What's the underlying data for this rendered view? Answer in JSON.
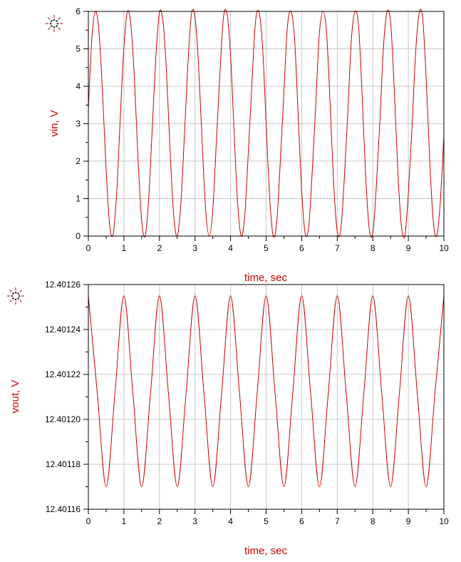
{
  "chart_data": [
    {
      "type": "line",
      "xlabel": "time, sec",
      "ylabel": "vin, V",
      "xlim": [
        0,
        10
      ],
      "ylim": [
        0,
        6
      ],
      "x_ticks": [
        "0",
        "1",
        "2",
        "3",
        "4",
        "5",
        "6",
        "7",
        "8",
        "9",
        "10"
      ],
      "y_ticks": [
        "0",
        "1",
        "2",
        "3",
        "4",
        "5",
        "6"
      ],
      "grid": true,
      "color": "#cc0000",
      "series": [
        {
          "x": [
            0,
            0.1,
            0.2,
            0.3,
            0.4,
            0.5,
            0.6,
            0.7,
            0.8,
            0.9,
            1,
            1.1,
            1.2,
            1.3,
            1.4,
            1.5,
            1.6,
            1.7,
            1.8,
            1.9,
            2,
            2.1,
            2.2,
            2.3,
            2.4,
            2.5,
            2.6,
            2.7,
            2.8,
            2.9,
            3,
            3.1,
            3.2,
            3.3,
            3.4,
            3.5,
            3.6,
            3.7,
            3.8,
            3.9,
            4,
            4.1,
            4.2,
            4.3,
            4.4,
            4.5,
            4.6,
            4.7,
            4.8,
            4.9,
            5,
            5.1,
            5.2,
            5.3,
            5.4,
            5.5,
            5.6,
            5.7,
            5.8,
            5.9,
            6,
            6.1,
            6.2,
            6.3,
            6.4,
            6.5,
            6.6,
            6.7,
            6.8,
            6.9,
            7,
            7.1,
            7.2,
            7.3,
            7.4,
            7.5,
            7.6,
            7.7,
            7.8,
            7.9,
            8,
            8.1,
            8.2,
            8.3,
            8.4,
            8.5,
            8.6,
            8.7,
            8.8,
            8.9,
            9,
            9.1,
            9.2,
            9.3,
            9.4,
            9.5,
            9.6,
            9.7,
            9.8,
            9.9,
            10
          ],
          "y": [
            3.4,
            5.3,
            6,
            5.44,
            3.79,
            1.77,
            0.28,
            0.06,
            1.21,
            3.2,
            5.05,
            6,
            5.6,
            4.1,
            2.01,
            0.4,
            0,
            1.04,
            2.93,
            4.81,
            5.98,
            5.72,
            4.34,
            2.25,
            0.56,
            0,
            0.86,
            2.66,
            4.59,
            5.93,
            5.84,
            4.56,
            2.51,
            0.7,
            0,
            0.7,
            2.51,
            4.33,
            5.84,
            5.93,
            4.82,
            2.77,
            0.87,
            0,
            0.56,
            2.25,
            4.08,
            5.72,
            5.98,
            5.05,
            3.01,
            1.04,
            0,
            0.4,
            2.01,
            3.85,
            5.6,
            6,
            5.27,
            3.25,
            1.21,
            0.06,
            0.28,
            1.77,
            3.6,
            5.44,
            6,
            5.44,
            3.52,
            1.4,
            0.12,
            0.17,
            1.55,
            3.35,
            5.27,
            6,
            5.6,
            3.76,
            1.6,
            0.2,
            0.08,
            1.33,
            3.1,
            5.05,
            5.98,
            5.72,
            4.01,
            1.82,
            0.31,
            0,
            1.13,
            2.85,
            4.82,
            5.93,
            5.84,
            4.25,
            2.04,
            0.42,
            0,
            0.94,
            2.69
          ]
        }
      ]
    },
    {
      "type": "line",
      "xlabel": "time, sec",
      "ylabel": "vout, V",
      "xlim": [
        0,
        10
      ],
      "ylim": [
        12.40116,
        12.40126
      ],
      "x_ticks": [
        "0",
        "1",
        "2",
        "3",
        "4",
        "5",
        "6",
        "7",
        "8",
        "9",
        "10"
      ],
      "y_ticks": [
        "12.40116",
        "12.40118",
        "12.40120",
        "12.40122",
        "12.40124",
        "12.40126"
      ],
      "grid": true,
      "color": "#cc0000",
      "series": [
        {
          "x": [
            0,
            0.25,
            0.5,
            0.75,
            1,
            1.25,
            1.5,
            1.75,
            2,
            2.25,
            2.5,
            2.75,
            3,
            3.25,
            3.5,
            3.75,
            4,
            4.25,
            4.5,
            4.75,
            5,
            5.25,
            5.5,
            5.75,
            6,
            6.25,
            6.5,
            6.75,
            7,
            7.25,
            7.5,
            7.75,
            8,
            8.25,
            8.5,
            8.75,
            9,
            9.25,
            9.5,
            9.75,
            10
          ],
          "y": [
            12.401255,
            12.401212,
            12.40117,
            12.401212,
            12.401255,
            12.401212,
            12.40117,
            12.401212,
            12.401255,
            12.401212,
            12.40117,
            12.401212,
            12.401255,
            12.401212,
            12.40117,
            12.401212,
            12.401255,
            12.401212,
            12.40117,
            12.401212,
            12.401255,
            12.401212,
            12.40117,
            12.401212,
            12.401255,
            12.401212,
            12.40117,
            12.401212,
            12.401255,
            12.401212,
            12.40117,
            12.401212,
            12.401255,
            12.401212,
            12.40117,
            12.401212,
            12.401255,
            12.401212,
            12.40117,
            12.401212,
            12.401255
          ]
        }
      ]
    }
  ],
  "icons": {
    "chart1_marker": "marker-icon",
    "chart2_marker": "marker-icon"
  }
}
